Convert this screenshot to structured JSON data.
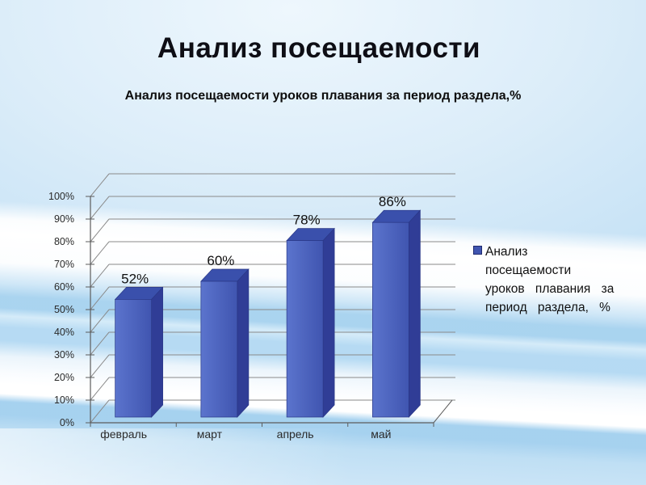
{
  "slide": {
    "title": "Анализ посещаемости",
    "subtitle": "Анализ посещаемости уроков плавания за период раздела,%"
  },
  "chart_data": {
    "type": "bar",
    "style": "3d-column",
    "categories": [
      "февраль",
      "март",
      "апрель",
      "май"
    ],
    "values": [
      52,
      60,
      78,
      86
    ],
    "bar_labels": [
      "52%",
      "60%",
      "78%",
      "86%"
    ],
    "yticks": [
      "0%",
      "10%",
      "20%",
      "30%",
      "40%",
      "50%",
      "60%",
      "70%",
      "80%",
      "90%",
      "100%"
    ],
    "ylim": [
      0,
      100
    ],
    "ytick_step": 10,
    "grid": true,
    "xlabel": "",
    "ylabel": "",
    "legend": {
      "label": "Анализ посещаемости уроков плавания за период раздела, %",
      "lines": [
        "Анализ",
        "посещаемости",
        "уроков плавания за",
        "период раздела, %"
      ],
      "position": "right"
    },
    "colors": {
      "bar_front_light": "#5b74cd",
      "bar_front_dark": "#4055b0",
      "bar_side": "#303d96",
      "bar_top": "#3a50ac",
      "bar_outline": "#2a3887",
      "gridline": "#8a8a8a",
      "axis": "#5c5c5c",
      "tick_text": "#2a2a2a",
      "data_label_text": "#101010"
    }
  }
}
